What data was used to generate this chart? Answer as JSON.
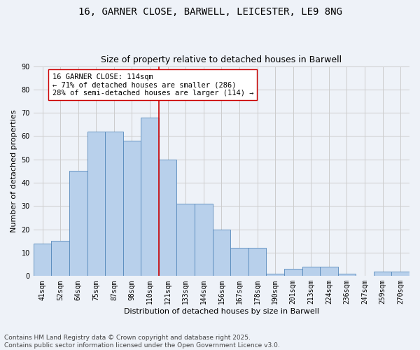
{
  "title_line1": "16, GARNER CLOSE, BARWELL, LEICESTER, LE9 8NG",
  "title_line2": "Size of property relative to detached houses in Barwell",
  "xlabel": "Distribution of detached houses by size in Barwell",
  "ylabel": "Number of detached properties",
  "categories": [
    "41sqm",
    "52sqm",
    "64sqm",
    "75sqm",
    "87sqm",
    "98sqm",
    "110sqm",
    "121sqm",
    "133sqm",
    "144sqm",
    "156sqm",
    "167sqm",
    "178sqm",
    "190sqm",
    "201sqm",
    "213sqm",
    "224sqm",
    "236sqm",
    "247sqm",
    "259sqm",
    "270sqm"
  ],
  "values": [
    14,
    15,
    45,
    62,
    62,
    58,
    68,
    50,
    31,
    31,
    20,
    12,
    12,
    1,
    3,
    4,
    4,
    1,
    0,
    2,
    2
  ],
  "bar_color": "#b8d0eb",
  "bar_edge_color": "#5588bb",
  "vline_x_index": 6.5,
  "vline_color": "#cc0000",
  "annotation_text": "16 GARNER CLOSE: 114sqm\n← 71% of detached houses are smaller (286)\n28% of semi-detached houses are larger (114) →",
  "annotation_box_color": "#ffffff",
  "annotation_box_edge_color": "#cc0000",
  "ylim": [
    0,
    90
  ],
  "yticks": [
    0,
    10,
    20,
    30,
    40,
    50,
    60,
    70,
    80,
    90
  ],
  "grid_color": "#cccccc",
  "background_color": "#eef2f8",
  "footer_line1": "Contains HM Land Registry data © Crown copyright and database right 2025.",
  "footer_line2": "Contains public sector information licensed under the Open Government Licence v3.0.",
  "title_fontsize": 10,
  "subtitle_fontsize": 9,
  "axis_label_fontsize": 8,
  "tick_fontsize": 7,
  "annotation_fontsize": 7.5,
  "footer_fontsize": 6.5
}
